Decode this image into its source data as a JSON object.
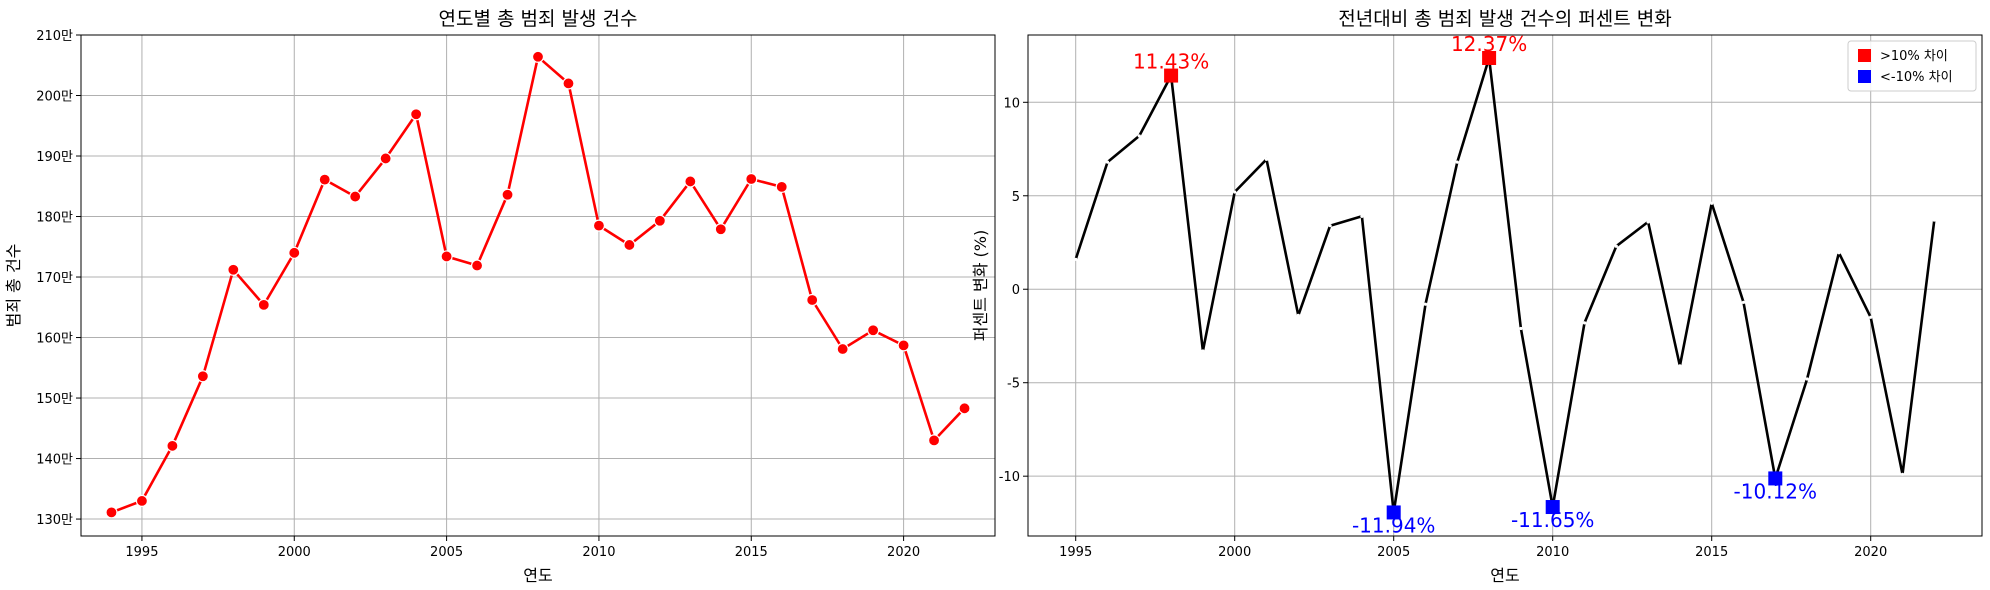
{
  "chart_data": [
    {
      "type": "line",
      "title": "연도별 총 범죄 발생 건수",
      "xlabel": "연도",
      "ylabel": "범죄 총 건수",
      "x_ticks": [
        1995,
        2000,
        2005,
        2010,
        2015,
        2020
      ],
      "y_ticks": [
        1300000,
        1400000,
        1500000,
        1600000,
        1700000,
        1800000,
        1900000,
        2000000,
        2100000
      ],
      "y_tick_labels": [
        "130만",
        "140만",
        "150만",
        "160만",
        "170만",
        "180만",
        "190만",
        "200만",
        "210만"
      ],
      "xlim": [
        1993,
        2023
      ],
      "ylim": [
        1272000,
        2100000
      ],
      "grid": true,
      "color": "#ff0000",
      "series": [
        {
          "x": [
            1994,
            1995,
            1996,
            1997,
            1998,
            1999,
            2000,
            2001,
            2002,
            2003,
            2004,
            2005,
            2006,
            2007,
            2008,
            2009,
            2010,
            2011,
            2012,
            2013,
            2014,
            2015,
            2016,
            2017,
            2018,
            2019,
            2020,
            2021,
            2022
          ],
          "values": [
            1311000,
            1330000,
            1421000,
            1536000,
            1712000,
            1654000,
            1740000,
            1861000,
            1833000,
            1896000,
            1969000,
            1734000,
            1719000,
            1836000,
            2064000,
            2020000,
            1785000,
            1753000,
            1793000,
            1858000,
            1779000,
            1862000,
            1849000,
            1662000,
            1581000,
            1612000,
            1587000,
            1430000,
            1483000
          ]
        }
      ]
    },
    {
      "type": "line",
      "title": "전년대비 총 범죄 발생 건수의 퍼센트 변화",
      "xlabel": "연도",
      "ylabel": "퍼센트 변화 (%)",
      "x_ticks": [
        1995,
        2000,
        2005,
        2010,
        2015,
        2020
      ],
      "y_ticks": [
        -10,
        -5,
        0,
        5,
        10
      ],
      "xlim": [
        1993.5,
        2023.5
      ],
      "ylim": [
        -13.2,
        13.6
      ],
      "grid": true,
      "color": "#000000",
      "series": [
        {
          "x": [
            1995,
            1996,
            1997,
            1998,
            1999,
            2000,
            2001,
            2002,
            2003,
            2004,
            2005,
            2006,
            2007,
            2008,
            2009,
            2010,
            2011,
            2012,
            2013,
            2014,
            2015,
            2016,
            2017,
            2018,
            2019,
            2020,
            2021,
            2022
          ],
          "values": [
            1.6,
            6.8,
            8.2,
            11.43,
            -3.3,
            5.2,
            6.95,
            -1.4,
            3.4,
            3.9,
            -11.94,
            -0.8,
            6.8,
            12.37,
            -2.1,
            -11.65,
            -1.8,
            2.3,
            3.6,
            -4.1,
            4.6,
            -0.7,
            -10.12,
            -4.8,
            1.95,
            -1.5,
            -9.9,
            3.7
          ]
        }
      ],
      "highlight_up": {
        "name": ">10% 차이",
        "color": "#ff0000",
        "x": [
          1998,
          2008
        ],
        "values": [
          11.43,
          12.37
        ],
        "labels": [
          "11.43%",
          "12.37%"
        ]
      },
      "highlight_down": {
        "name": "<-10% 차이",
        "color": "#0000ff",
        "x": [
          2005,
          2010,
          2017
        ],
        "values": [
          -11.94,
          -11.65,
          -10.12
        ],
        "labels": [
          "-11.94%",
          "-11.65%",
          "-10.12%"
        ]
      },
      "legend_position": "upper right"
    }
  ]
}
